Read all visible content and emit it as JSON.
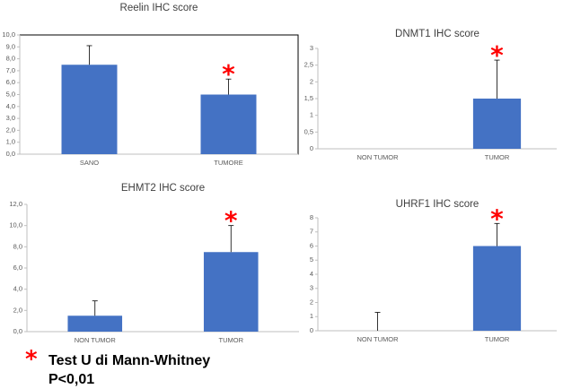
{
  "chart_data": [
    {
      "type": "bar",
      "title": "Reelin IHC score",
      "categories": [
        "SANO",
        "TUMORE"
      ],
      "values": [
        7.5,
        5.0
      ],
      "error_upper": [
        9.1,
        6.3
      ],
      "significant": [
        false,
        true
      ],
      "yticks": [
        "0,0",
        "1,0",
        "2,0",
        "3,0",
        "4,0",
        "5,0",
        "6,0",
        "7,0",
        "8,0",
        "9,0",
        "10,0"
      ],
      "ylim": [
        0,
        10
      ],
      "bordered": true,
      "bar_color": "#4472c4",
      "marker_color": "#ff0000",
      "marker": "*"
    },
    {
      "type": "bar",
      "title": "DNMT1 IHC score",
      "categories": [
        "NON TUMOR",
        "TUMOR"
      ],
      "values": [
        0,
        1.5
      ],
      "error_upper": [
        0,
        2.65
      ],
      "significant": [
        false,
        true
      ],
      "yticks": [
        "0",
        "0,5",
        "1",
        "1,5",
        "2",
        "2,5",
        "3"
      ],
      "ylim": [
        0,
        3
      ],
      "bordered": false,
      "bar_color": "#4472c4",
      "marker_color": "#ff0000",
      "marker": "*"
    },
    {
      "type": "bar",
      "title": "EHMT2 IHC score",
      "categories": [
        "NON TUMOR",
        "TUMOR"
      ],
      "values": [
        1.5,
        7.5
      ],
      "error_upper": [
        2.9,
        10.0
      ],
      "significant": [
        false,
        true
      ],
      "yticks": [
        "0,0",
        "2,0",
        "4,0",
        "6,0",
        "8,0",
        "10,0",
        "12,0"
      ],
      "ylim": [
        0,
        12
      ],
      "bordered": false,
      "bar_color": "#4472c4",
      "marker_color": "#ff0000",
      "marker": "*"
    },
    {
      "type": "bar",
      "title": "UHRF1 IHC score",
      "categories": [
        "NON TUMOR",
        "TUMOR"
      ],
      "values": [
        0,
        6.0
      ],
      "error_upper": [
        1.3,
        7.6
      ],
      "significant": [
        false,
        true
      ],
      "yticks": [
        "0",
        "1",
        "2",
        "3",
        "4",
        "5",
        "6",
        "7",
        "8"
      ],
      "ylim": [
        0,
        8
      ],
      "bordered": false,
      "bar_color": "#4472c4",
      "marker_color": "#ff0000",
      "marker": "*"
    }
  ],
  "footnote": {
    "marker": "*",
    "line1": "Test U di Mann-Whitney",
    "line2": "P<0,01"
  }
}
